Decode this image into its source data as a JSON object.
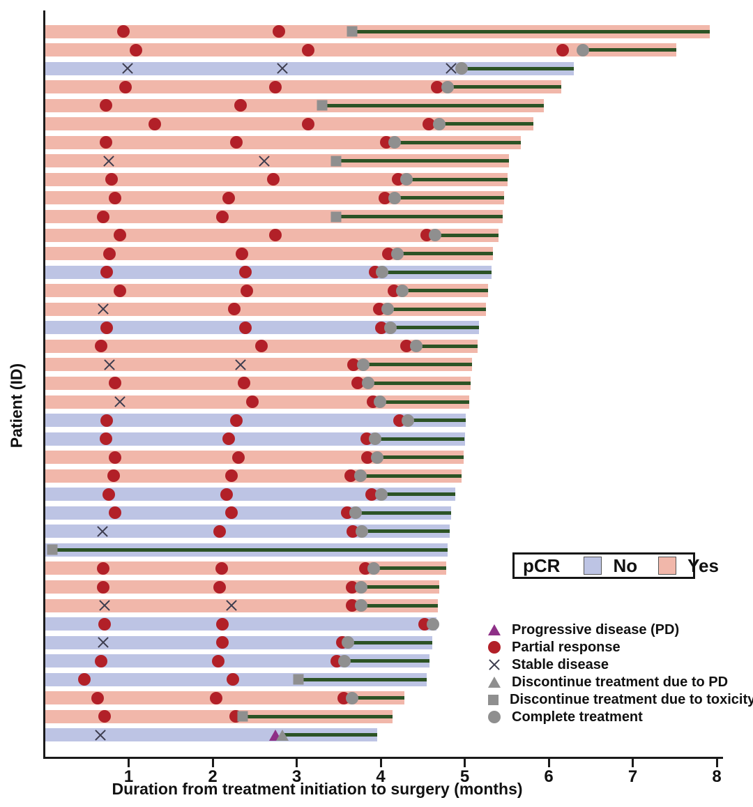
{
  "axis": {
    "x_label": "Duration from treatment initiation to surgery (months)",
    "y_label": "Patient (ID)",
    "x_ticks": [
      1,
      2,
      3,
      4,
      5,
      6,
      7,
      8
    ],
    "x_range": [
      0,
      8
    ]
  },
  "colors": {
    "pcr_yes": "#f1b7aa",
    "pcr_no": "#bdc4e4",
    "treatment_line": "#2c5325",
    "partial_response": "#b22028",
    "gray_marker": "#8f8f8f",
    "progressive_disease": "#8e3087",
    "stable_x": "#3c3c4e",
    "axis": "#1a1a1a"
  },
  "pcr_legend": {
    "label": "pCR",
    "no_label": "No",
    "yes_label": "Yes"
  },
  "marker_legend": [
    {
      "type": "PD",
      "icon": "m-pd",
      "label": "Progressive disease (PD)"
    },
    {
      "type": "PR",
      "icon": "m-pr",
      "label": "Partial response"
    },
    {
      "type": "SD",
      "icon": "m-sd",
      "label": "Stable disease"
    },
    {
      "type": "DPD",
      "icon": "m-dpd",
      "label": "Discontinue treatment due to PD"
    },
    {
      "type": "TOX",
      "icon": "m-tox",
      "label": "Discontinue treatment due to toxicity"
    },
    {
      "type": "CT",
      "icon": "m-ct",
      "label": "Complete treatment"
    }
  ],
  "chart_data": {
    "type": "swimmer",
    "x_unit": "months",
    "title": "",
    "sorted_by": "duration descending",
    "patients": [
      {
        "pcr": "Yes",
        "end": 7.92,
        "events": [
          [
            "PR",
            0.94
          ],
          [
            "PR",
            2.79
          ],
          [
            "TOX",
            3.66
          ]
        ]
      },
      {
        "pcr": "Yes",
        "end": 7.52,
        "events": [
          [
            "PR",
            1.09
          ],
          [
            "PR",
            3.14
          ],
          [
            "PR",
            6.17
          ],
          [
            "CT",
            6.41
          ]
        ]
      },
      {
        "pcr": "No",
        "end": 6.3,
        "events": [
          [
            "SD",
            0.99
          ],
          [
            "SD",
            2.83
          ],
          [
            "SD",
            4.84
          ],
          [
            "CT",
            4.96
          ]
        ]
      },
      {
        "pcr": "Yes",
        "end": 6.15,
        "events": [
          [
            "PR",
            0.96
          ],
          [
            "PR",
            2.75
          ],
          [
            "PR",
            4.67
          ],
          [
            "CT",
            4.8
          ]
        ]
      },
      {
        "pcr": "Yes",
        "end": 5.94,
        "events": [
          [
            "PR",
            0.73
          ],
          [
            "PR",
            2.33
          ],
          [
            "TOX",
            3.3
          ]
        ]
      },
      {
        "pcr": "Yes",
        "end": 5.82,
        "events": [
          [
            "PR",
            1.31
          ],
          [
            "PR",
            3.14
          ],
          [
            "PR",
            4.57
          ],
          [
            "CT",
            4.7
          ]
        ]
      },
      {
        "pcr": "Yes",
        "end": 5.67,
        "events": [
          [
            "PR",
            0.73
          ],
          [
            "PR",
            2.28
          ],
          [
            "PR",
            4.07
          ],
          [
            "CT",
            4.17
          ]
        ]
      },
      {
        "pcr": "Yes",
        "end": 5.53,
        "events": [
          [
            "SD",
            0.76
          ],
          [
            "SD",
            2.61
          ],
          [
            "TOX",
            3.47
          ]
        ]
      },
      {
        "pcr": "Yes",
        "end": 5.51,
        "events": [
          [
            "PR",
            0.8
          ],
          [
            "PR",
            2.72
          ],
          [
            "PR",
            4.21
          ],
          [
            "CT",
            4.31
          ]
        ]
      },
      {
        "pcr": "Yes",
        "end": 5.47,
        "events": [
          [
            "PR",
            0.84
          ],
          [
            "PR",
            2.19
          ],
          [
            "PR",
            4.05
          ],
          [
            "CT",
            4.17
          ]
        ]
      },
      {
        "pcr": "Yes",
        "end": 5.45,
        "events": [
          [
            "PR",
            0.7
          ],
          [
            "PR",
            2.12
          ],
          [
            "TOX",
            3.47
          ]
        ]
      },
      {
        "pcr": "Yes",
        "end": 5.4,
        "events": [
          [
            "PR",
            0.9
          ],
          [
            "PR",
            2.75
          ],
          [
            "PR",
            4.55
          ],
          [
            "CT",
            4.65
          ]
        ]
      },
      {
        "pcr": "Yes",
        "end": 5.34,
        "events": [
          [
            "PR",
            0.77
          ],
          [
            "PR",
            2.35
          ],
          [
            "PR",
            4.09
          ],
          [
            "CT",
            4.2
          ]
        ]
      },
      {
        "pcr": "No",
        "end": 5.32,
        "events": [
          [
            "PR",
            0.74
          ],
          [
            "PR",
            2.39
          ],
          [
            "PR",
            3.93
          ],
          [
            "CT",
            4.02
          ]
        ]
      },
      {
        "pcr": "Yes",
        "end": 5.28,
        "events": [
          [
            "PR",
            0.9
          ],
          [
            "PR",
            2.41
          ],
          [
            "PR",
            4.16
          ],
          [
            "CT",
            4.26
          ]
        ]
      },
      {
        "pcr": "Yes",
        "end": 5.25,
        "events": [
          [
            "SD",
            0.7
          ],
          [
            "PR",
            2.26
          ],
          [
            "PR",
            3.98
          ],
          [
            "CT",
            4.08
          ]
        ]
      },
      {
        "pcr": "No",
        "end": 5.17,
        "events": [
          [
            "PR",
            0.74
          ],
          [
            "PR",
            2.39
          ],
          [
            "PR",
            4.01
          ],
          [
            "CT",
            4.12
          ]
        ]
      },
      {
        "pcr": "Yes",
        "end": 5.15,
        "events": [
          [
            "PR",
            0.67
          ],
          [
            "PR",
            2.58
          ],
          [
            "PR",
            4.31
          ],
          [
            "CT",
            4.42
          ]
        ]
      },
      {
        "pcr": "Yes",
        "end": 5.09,
        "events": [
          [
            "SD",
            0.77
          ],
          [
            "SD",
            2.33
          ],
          [
            "PR",
            3.68
          ],
          [
            "CT",
            3.79
          ]
        ]
      },
      {
        "pcr": "Yes",
        "end": 5.07,
        "events": [
          [
            "PR",
            0.84
          ],
          [
            "PR",
            2.37
          ],
          [
            "PR",
            3.73
          ],
          [
            "CT",
            3.85
          ]
        ]
      },
      {
        "pcr": "Yes",
        "end": 5.05,
        "events": [
          [
            "SD",
            0.9
          ],
          [
            "PR",
            2.47
          ],
          [
            "PR",
            3.91
          ],
          [
            "CT",
            3.99
          ]
        ]
      },
      {
        "pcr": "No",
        "end": 5.01,
        "events": [
          [
            "PR",
            0.74
          ],
          [
            "PR",
            2.28
          ],
          [
            "PR",
            4.22
          ],
          [
            "CT",
            4.32
          ]
        ]
      },
      {
        "pcr": "No",
        "end": 5.0,
        "events": [
          [
            "PR",
            0.73
          ],
          [
            "PR",
            2.19
          ],
          [
            "PR",
            3.83
          ],
          [
            "CT",
            3.93
          ]
        ]
      },
      {
        "pcr": "Yes",
        "end": 4.99,
        "events": [
          [
            "PR",
            0.84
          ],
          [
            "PR",
            2.31
          ],
          [
            "PR",
            3.84
          ],
          [
            "CT",
            3.96
          ]
        ]
      },
      {
        "pcr": "Yes",
        "end": 4.96,
        "events": [
          [
            "PR",
            0.82
          ],
          [
            "PR",
            2.22
          ],
          [
            "PR",
            3.64
          ],
          [
            "CT",
            3.76
          ]
        ]
      },
      {
        "pcr": "No",
        "end": 4.89,
        "events": [
          [
            "PR",
            0.76
          ],
          [
            "PR",
            2.17
          ],
          [
            "PR",
            3.89
          ],
          [
            "CT",
            4.01
          ]
        ]
      },
      {
        "pcr": "No",
        "end": 4.84,
        "events": [
          [
            "PR",
            0.84
          ],
          [
            "PR",
            2.22
          ],
          [
            "PR",
            3.6
          ],
          [
            "CT",
            3.7
          ]
        ]
      },
      {
        "pcr": "No",
        "end": 4.82,
        "events": [
          [
            "SD",
            0.69
          ],
          [
            "PR",
            2.08
          ],
          [
            "PR",
            3.67
          ],
          [
            "CT",
            3.78
          ]
        ]
      },
      {
        "pcr": "No",
        "end": 4.8,
        "events": [
          [
            "TOX",
            0.09
          ]
        ]
      },
      {
        "pcr": "Yes",
        "end": 4.78,
        "events": [
          [
            "PR",
            0.7
          ],
          [
            "PR",
            2.11
          ],
          [
            "PR",
            3.82
          ],
          [
            "CT",
            3.92
          ]
        ]
      },
      {
        "pcr": "Yes",
        "end": 4.7,
        "events": [
          [
            "PR",
            0.7
          ],
          [
            "PR",
            2.08
          ],
          [
            "PR",
            3.66
          ],
          [
            "CT",
            3.77
          ]
        ]
      },
      {
        "pcr": "Yes",
        "end": 4.68,
        "events": [
          [
            "SD",
            0.71
          ],
          [
            "SD",
            2.22
          ],
          [
            "PR",
            3.66
          ],
          [
            "CT",
            3.77
          ]
        ]
      },
      {
        "pcr": "No",
        "end": 4.66,
        "events": [
          [
            "PR",
            0.71
          ],
          [
            "PR",
            2.12
          ],
          [
            "PR",
            4.52
          ],
          [
            "CT",
            4.62
          ]
        ]
      },
      {
        "pcr": "No",
        "end": 4.61,
        "events": [
          [
            "SD",
            0.7
          ],
          [
            "PR",
            2.12
          ],
          [
            "PR",
            3.54
          ],
          [
            "CT",
            3.61
          ]
        ]
      },
      {
        "pcr": "No",
        "end": 4.58,
        "events": [
          [
            "PR",
            0.67
          ],
          [
            "PR",
            2.07
          ],
          [
            "PR",
            3.48
          ],
          [
            "CT",
            3.57
          ]
        ]
      },
      {
        "pcr": "No",
        "end": 4.55,
        "events": [
          [
            "PR",
            0.47
          ],
          [
            "PR",
            2.24
          ],
          [
            "TOX",
            3.02
          ]
        ]
      },
      {
        "pcr": "Yes",
        "end": 4.28,
        "events": [
          [
            "PR",
            0.63
          ],
          [
            "PR",
            2.04
          ],
          [
            "PR",
            3.56
          ],
          [
            "CT",
            3.66
          ]
        ]
      },
      {
        "pcr": "Yes",
        "end": 4.14,
        "events": [
          [
            "PR",
            0.71
          ],
          [
            "PR",
            2.27
          ],
          [
            "TOX",
            2.36
          ]
        ]
      },
      {
        "pcr": "No",
        "end": 3.96,
        "events": [
          [
            "SD",
            0.66
          ],
          [
            "PD",
            2.75
          ],
          [
            "DPD",
            2.83
          ]
        ]
      }
    ]
  }
}
